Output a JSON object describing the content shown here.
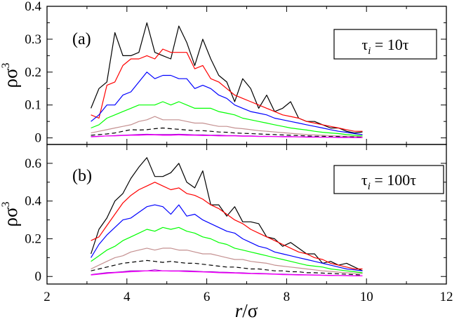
{
  "chart_data": [
    {
      "type": "line",
      "panel_label": "(a)",
      "annotation": "τi = 10τ",
      "annotation_parts": {
        "base": "τ",
        "sub": "i",
        "rest": " = 10τ"
      },
      "ylabel": "ρσ³",
      "ylabel_parts": {
        "base": "ρσ",
        "sup": "3"
      },
      "xlim": [
        2,
        12
      ],
      "ylim": [
        -0.02,
        0.4
      ],
      "yticks": [
        0,
        0.1,
        0.2,
        0.3,
        0.4
      ],
      "ytick_labels": [
        "0",
        "0.1",
        "0.2",
        "0.3",
        "0.4"
      ],
      "x": [
        3.1,
        3.3,
        3.5,
        3.7,
        3.9,
        4.1,
        4.3,
        4.5,
        4.7,
        4.9,
        5.1,
        5.3,
        5.5,
        5.7,
        5.9,
        6.1,
        6.3,
        6.5,
        6.7,
        6.9,
        7.1,
        7.3,
        7.5,
        7.7,
        7.9,
        8.1,
        8.3,
        8.5,
        8.7,
        8.9,
        9.1,
        9.3,
        9.5,
        9.7,
        9.9
      ],
      "series": [
        {
          "name": "black",
          "color": "#000000",
          "dash": "",
          "values": [
            0.09,
            0.15,
            0.17,
            0.32,
            0.25,
            0.25,
            0.26,
            0.35,
            0.26,
            0.25,
            0.24,
            0.34,
            0.29,
            0.22,
            0.3,
            0.24,
            0.19,
            0.17,
            0.11,
            0.18,
            0.15,
            0.09,
            0.13,
            0.08,
            0.09,
            0.11,
            0.06,
            0.05,
            0.05,
            0.04,
            0.03,
            0.03,
            0.02,
            0.015,
            0.018
          ]
        },
        {
          "name": "red",
          "color": "#ff0000",
          "dash": "",
          "values": [
            0.07,
            0.06,
            0.16,
            0.17,
            0.22,
            0.24,
            0.24,
            0.25,
            0.24,
            0.27,
            0.26,
            0.26,
            0.26,
            0.21,
            0.22,
            0.18,
            0.17,
            0.15,
            0.13,
            0.12,
            0.11,
            0.1,
            0.09,
            0.08,
            0.07,
            0.065,
            0.06,
            0.05,
            0.045,
            0.04,
            0.035,
            0.03,
            0.025,
            0.02,
            0.02
          ]
        },
        {
          "name": "blue",
          "color": "#0000ff",
          "dash": "",
          "values": [
            0.05,
            0.07,
            0.1,
            0.1,
            0.13,
            0.14,
            0.17,
            0.2,
            0.18,
            0.19,
            0.19,
            0.18,
            0.18,
            0.15,
            0.16,
            0.15,
            0.13,
            0.12,
            0.1,
            0.09,
            0.08,
            0.075,
            0.07,
            0.06,
            0.055,
            0.05,
            0.045,
            0.04,
            0.035,
            0.03,
            0.025,
            0.02,
            0.017,
            0.013,
            0.01
          ]
        },
        {
          "name": "green",
          "color": "#00ff00",
          "dash": "",
          "values": [
            0.03,
            0.04,
            0.06,
            0.07,
            0.08,
            0.09,
            0.1,
            0.1,
            0.1,
            0.11,
            0.1,
            0.11,
            0.1,
            0.09,
            0.09,
            0.09,
            0.08,
            0.075,
            0.07,
            0.06,
            0.055,
            0.05,
            0.045,
            0.04,
            0.035,
            0.03,
            0.027,
            0.024,
            0.02,
            0.017,
            0.015,
            0.013,
            0.01,
            0.008,
            0.006
          ]
        },
        {
          "name": "tan",
          "color": "#c49090",
          "dash": "",
          "values": [
            0.015,
            0.02,
            0.025,
            0.03,
            0.035,
            0.04,
            0.05,
            0.055,
            0.065,
            0.055,
            0.055,
            0.055,
            0.05,
            0.045,
            0.045,
            0.04,
            0.035,
            0.035,
            0.03,
            0.028,
            0.025,
            0.022,
            0.02,
            0.018,
            0.016,
            0.014,
            0.012,
            0.01,
            0.009,
            0.008,
            0.007,
            0.006,
            0.005,
            0.004,
            0.003
          ]
        },
        {
          "name": "black-dashed",
          "color": "#000000",
          "dash": "6,4",
          "values": [
            0.008,
            0.01,
            0.012,
            0.015,
            0.02,
            0.025,
            0.024,
            0.025,
            0.028,
            0.03,
            0.028,
            0.026,
            0.024,
            0.022,
            0.022,
            0.02,
            0.018,
            0.017,
            0.015,
            0.014,
            0.013,
            0.012,
            0.011,
            0.01,
            0.009,
            0.008,
            0.007,
            0.006,
            0.005,
            0.005,
            0.004,
            0.004,
            0.003,
            0.003,
            0.002
          ]
        },
        {
          "name": "violet",
          "color": "#9900cc",
          "dash": "",
          "values": [
            0.004,
            0.005,
            0.006,
            0.007,
            0.008,
            0.009,
            0.01,
            0.011,
            0.01,
            0.01,
            0.01,
            0.011,
            0.01,
            0.009,
            0.009,
            0.008,
            0.008,
            0.007,
            0.007,
            0.006,
            0.006,
            0.005,
            0.005,
            0.004,
            0.004,
            0.004,
            0.003,
            0.003,
            0.003,
            0.002,
            0.002,
            0.002,
            0.002,
            0.001,
            0.001
          ]
        },
        {
          "name": "magenta",
          "color": "#ff00ff",
          "dash": "",
          "values": [
            0.003,
            0.004,
            0.006,
            0.006,
            0.007,
            0.008,
            0.008,
            0.009,
            0.009,
            0.008,
            0.008,
            0.009,
            0.008,
            0.008,
            0.007,
            0.007,
            0.006,
            0.006,
            0.006,
            0.005,
            0.005,
            0.004,
            0.004,
            0.004,
            0.003,
            0.003,
            0.003,
            0.002,
            0.002,
            0.002,
            0.002,
            0.001,
            0.001,
            0.001,
            0.001
          ]
        }
      ]
    },
    {
      "type": "line",
      "panel_label": "(b)",
      "annotation": "τi = 100τ",
      "annotation_parts": {
        "base": "τ",
        "sub": "i",
        "rest": " = 100τ"
      },
      "ylabel": "ρσ³",
      "ylabel_parts": {
        "base": "ρσ",
        "sup": "3"
      },
      "xlabel": "r/σ",
      "xlabel_parts": {
        "r": "r",
        "rest": "/σ"
      },
      "xlim": [
        2,
        12
      ],
      "ylim": [
        -0.04,
        0.7
      ],
      "xticks": [
        2,
        4,
        6,
        8,
        10,
        12
      ],
      "xtick_labels": [
        "2",
        "4",
        "6",
        "8",
        "10",
        "12"
      ],
      "yticks": [
        0,
        0.2,
        0.4,
        0.6
      ],
      "ytick_labels": [
        "0",
        "0.2",
        "0.4",
        "0.6"
      ],
      "x": [
        3.1,
        3.3,
        3.5,
        3.7,
        3.9,
        4.1,
        4.3,
        4.5,
        4.7,
        4.9,
        5.1,
        5.3,
        5.5,
        5.7,
        5.9,
        6.1,
        6.3,
        6.5,
        6.7,
        6.9,
        7.1,
        7.3,
        7.5,
        7.7,
        7.9,
        8.1,
        8.3,
        8.5,
        8.7,
        8.9,
        9.1,
        9.3,
        9.5,
        9.7,
        9.9
      ],
      "series": [
        {
          "name": "black",
          "color": "#000000",
          "dash": "",
          "values": [
            0.12,
            0.25,
            0.31,
            0.4,
            0.44,
            0.52,
            0.58,
            0.63,
            0.53,
            0.53,
            0.55,
            0.6,
            0.5,
            0.47,
            0.56,
            0.38,
            0.38,
            0.32,
            0.37,
            0.29,
            0.29,
            0.28,
            0.21,
            0.2,
            0.16,
            0.18,
            0.15,
            0.12,
            0.12,
            0.07,
            0.08,
            0.06,
            0.07,
            0.05,
            0.03
          ]
        },
        {
          "name": "red",
          "color": "#ff0000",
          "dash": "",
          "values": [
            0.19,
            0.21,
            0.27,
            0.33,
            0.39,
            0.43,
            0.46,
            0.48,
            0.5,
            0.48,
            0.46,
            0.47,
            0.44,
            0.43,
            0.41,
            0.38,
            0.36,
            0.33,
            0.3,
            0.28,
            0.25,
            0.23,
            0.21,
            0.19,
            0.17,
            0.15,
            0.13,
            0.12,
            0.1,
            0.09,
            0.07,
            0.06,
            0.05,
            0.04,
            0.04
          ]
        },
        {
          "name": "blue",
          "color": "#0000ff",
          "dash": "",
          "values": [
            0.1,
            0.17,
            0.22,
            0.26,
            0.3,
            0.31,
            0.34,
            0.37,
            0.38,
            0.37,
            0.33,
            0.38,
            0.32,
            0.33,
            0.3,
            0.28,
            0.26,
            0.24,
            0.23,
            0.2,
            0.18,
            0.16,
            0.15,
            0.13,
            0.12,
            0.11,
            0.1,
            0.09,
            0.08,
            0.07,
            0.06,
            0.05,
            0.04,
            0.035,
            0.03
          ]
        },
        {
          "name": "green",
          "color": "#00ff00",
          "dash": "",
          "values": [
            0.08,
            0.11,
            0.14,
            0.16,
            0.19,
            0.21,
            0.23,
            0.25,
            0.24,
            0.26,
            0.25,
            0.26,
            0.24,
            0.23,
            0.21,
            0.2,
            0.18,
            0.17,
            0.15,
            0.14,
            0.13,
            0.12,
            0.11,
            0.1,
            0.09,
            0.08,
            0.07,
            0.06,
            0.055,
            0.05,
            0.04,
            0.035,
            0.03,
            0.025,
            0.02
          ]
        },
        {
          "name": "tan",
          "color": "#c49090",
          "dash": "",
          "values": [
            0.04,
            0.06,
            0.08,
            0.1,
            0.11,
            0.13,
            0.14,
            0.15,
            0.14,
            0.15,
            0.15,
            0.14,
            0.14,
            0.13,
            0.12,
            0.12,
            0.11,
            0.1,
            0.09,
            0.09,
            0.08,
            0.075,
            0.07,
            0.06,
            0.055,
            0.05,
            0.045,
            0.04,
            0.035,
            0.03,
            0.027,
            0.023,
            0.02,
            0.017,
            0.015
          ]
        },
        {
          "name": "black-dashed",
          "color": "#000000",
          "dash": "6,4",
          "values": [
            0.03,
            0.04,
            0.05,
            0.06,
            0.07,
            0.075,
            0.08,
            0.085,
            0.08,
            0.075,
            0.08,
            0.075,
            0.07,
            0.07,
            0.065,
            0.06,
            0.055,
            0.05,
            0.05,
            0.045,
            0.04,
            0.04,
            0.035,
            0.03,
            0.03,
            0.025,
            0.025,
            0.02,
            0.02,
            0.018,
            0.016,
            0.014,
            0.012,
            0.01,
            0.008
          ]
        },
        {
          "name": "violet",
          "color": "#9900cc",
          "dash": "",
          "values": [
            0.01,
            0.015,
            0.02,
            0.022,
            0.025,
            0.03,
            0.03,
            0.03,
            0.035,
            0.03,
            0.03,
            0.03,
            0.03,
            0.028,
            0.026,
            0.025,
            0.023,
            0.022,
            0.02,
            0.019,
            0.017,
            0.016,
            0.015,
            0.013,
            0.012,
            0.011,
            0.01,
            0.009,
            0.008,
            0.007,
            0.006,
            0.005,
            0.005,
            0.004,
            0.003
          ]
        },
        {
          "name": "magenta",
          "color": "#ff00ff",
          "dash": "",
          "values": [
            0.008,
            0.012,
            0.016,
            0.02,
            0.022,
            0.025,
            0.027,
            0.03,
            0.028,
            0.03,
            0.028,
            0.028,
            0.026,
            0.025,
            0.024,
            0.022,
            0.02,
            0.019,
            0.018,
            0.016,
            0.015,
            0.014,
            0.013,
            0.012,
            0.01,
            0.009,
            0.008,
            0.008,
            0.007,
            0.006,
            0.005,
            0.005,
            0.004,
            0.003,
            0.003
          ]
        }
      ]
    }
  ]
}
